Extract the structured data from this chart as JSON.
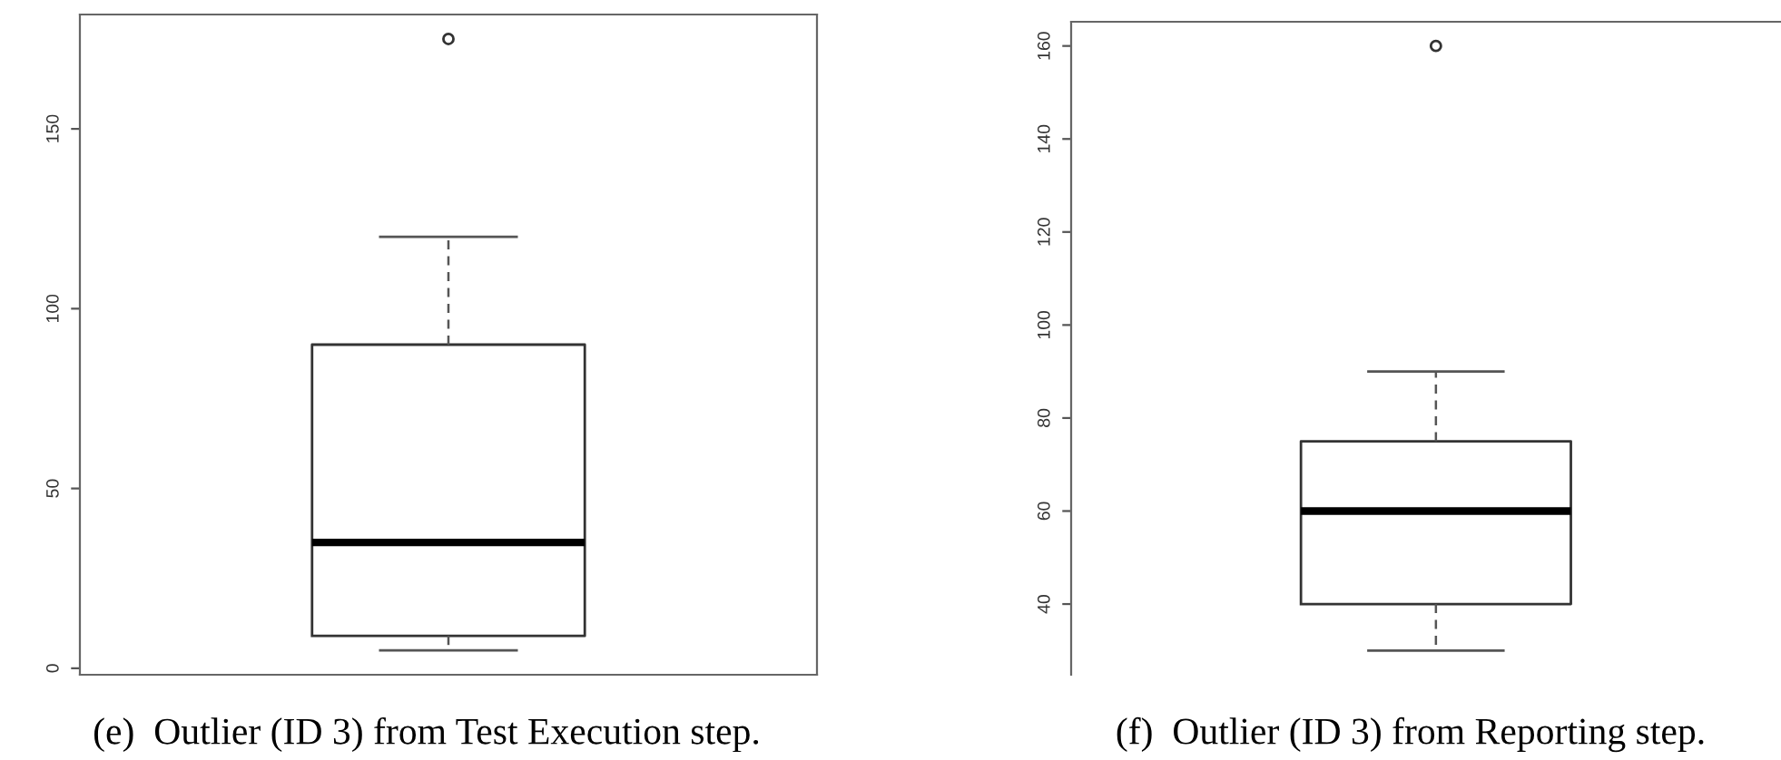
{
  "chart_data": [
    {
      "type": "box",
      "categories": [
        null
      ],
      "boxes": [
        {
          "low": 5,
          "q1": 9,
          "median": 35,
          "q3": 90,
          "high": 120,
          "outliers": [
            175
          ]
        }
      ],
      "ylim": [
        -1.8,
        181.8
      ],
      "yticks": [
        0,
        50,
        100,
        150
      ],
      "tick_labels": "y",
      "grid": false,
      "annotations": [
        "(e)  Outlier (ID 3) from Test Execution step."
      ]
    },
    {
      "type": "box",
      "categories": [
        null
      ],
      "boxes": [
        {
          "low": 30,
          "q1": 40,
          "median": 60,
          "q3": 75,
          "high": 90,
          "outliers": [
            160
          ]
        }
      ],
      "ylim": [
        24.8,
        165.2
      ],
      "yticks": [
        40,
        60,
        80,
        100,
        120,
        140,
        160
      ],
      "tick_labels": "y",
      "grid": false,
      "annotations": [
        "(f)  Outlier (ID 3) from Reporting step."
      ]
    }
  ]
}
